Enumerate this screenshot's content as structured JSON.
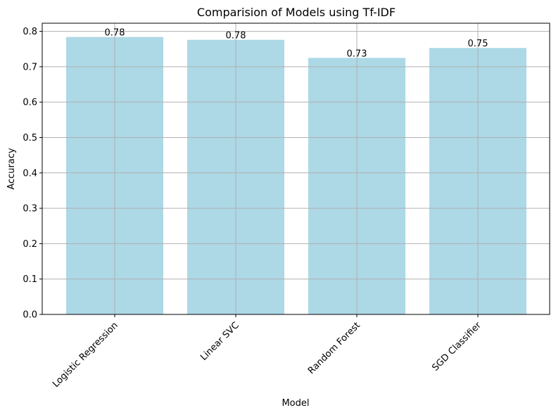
{
  "chart_data": {
    "type": "bar",
    "title": "Comparision of Models using Tf-IDF",
    "xlabel": "Model",
    "ylabel": "Accuracy",
    "categories": [
      "Logistic Regression",
      "Linear SVC",
      "Random Forest",
      "SGD Classifier"
    ],
    "values": [
      0.784,
      0.776,
      0.725,
      0.753
    ],
    "data_labels": [
      "0.78",
      "0.78",
      "0.73",
      "0.75"
    ],
    "ylim": [
      0,
      0.823
    ],
    "yticks": [
      0.0,
      0.1,
      0.2,
      0.3,
      0.4,
      0.5,
      0.6,
      0.7,
      0.8
    ],
    "ytick_labels": [
      "0.0",
      "0.1",
      "0.2",
      "0.3",
      "0.4",
      "0.5",
      "0.6",
      "0.7",
      "0.8"
    ],
    "bar_color": "#add8e6",
    "grid": true,
    "grid_color": "#b0b0b0"
  }
}
